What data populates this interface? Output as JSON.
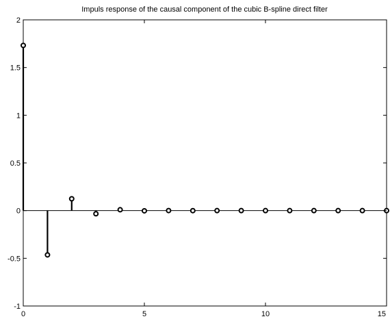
{
  "chart_data": {
    "type": "stem",
    "title": "Impuls response of the causal component of the cubic B-spline direct filter",
    "xlabel": "",
    "ylabel": "",
    "xlim": [
      0,
      15
    ],
    "ylim": [
      -1,
      2
    ],
    "x_ticks": [
      0,
      5,
      10,
      15
    ],
    "y_ticks": [
      -1,
      -0.5,
      0,
      0.5,
      1,
      1.5,
      2
    ],
    "x_tick_labels": [
      "0",
      "5",
      "10",
      "15"
    ],
    "y_tick_labels": [
      "-1",
      "-0.5",
      "0",
      "0.5",
      "1",
      "1.5",
      "2"
    ],
    "grid": false,
    "baseline": 0,
    "x": [
      0,
      1,
      2,
      3,
      4,
      5,
      6,
      7,
      8,
      9,
      10,
      11,
      12,
      13,
      14,
      15
    ],
    "values": [
      1.732,
      -0.464,
      0.124,
      -0.033,
      0.009,
      -0.002,
      0.0007,
      -0.0002,
      5e-05,
      -1e-05,
      4e-06,
      -1e-06,
      0,
      0,
      0,
      0
    ],
    "colors": {
      "stem": "#000000",
      "marker": "#000000",
      "axes": "#000000",
      "background": "#ffffff"
    }
  }
}
